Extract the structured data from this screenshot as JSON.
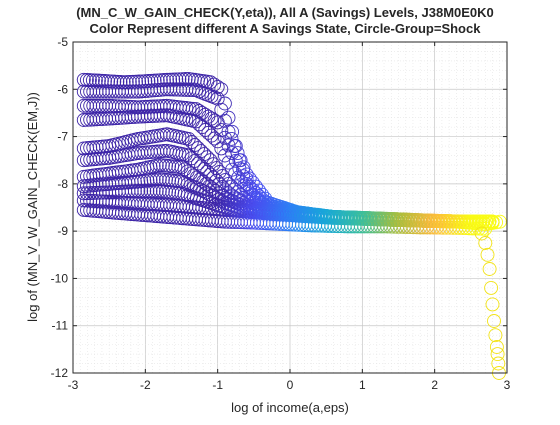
{
  "figure": {
    "title_line1": "(MN_C_W_GAIN_CHECK(Y,eta)), All A (Savings) Levels, J38M0E0K0",
    "title_line2": "Color Represent different A Savings State, Circle-Group=Shock"
  },
  "chart_data": {
    "type": "scatter",
    "title": "(MN_C_W_GAIN_CHECK(Y,eta)), All A (Savings) Levels, J38M0E0K0",
    "subtitle": "Color Represent different A Savings State, Circle-Group=Shock",
    "xlabel": "log of income(a,eps)",
    "ylabel": "log of (MN_V_W_GAIN_CHECK(EM,J))",
    "xlim": [
      -3,
      3
    ],
    "ylim": [
      -12,
      -5
    ],
    "x_ticks": [
      "-3",
      "-2",
      "-1",
      "0",
      "1",
      "2",
      "3"
    ],
    "y_ticks": [
      "-12",
      "-11",
      "-10",
      "-9",
      "-8",
      "-7",
      "-6",
      "-5"
    ],
    "grid": "major and minor dotted",
    "marker": "open circle",
    "colormap": [
      "#3e26a8",
      "#4a4cf0",
      "#2d7ff5",
      "#18a8d8",
      "#3bbf9d",
      "#a8be3e",
      "#fcba3c",
      "#f9fb15"
    ],
    "series": [
      {
        "x": [
          -2.85,
          -2.6,
          -2.3,
          -2.0,
          -1.7,
          -1.4,
          -1.1,
          -0.95,
          -0.85,
          -0.7,
          -0.5,
          -0.2,
          0.2,
          0.6,
          1.0,
          1.5,
          2.0,
          2.5,
          2.8
        ],
        "y": [
          -5.8,
          -5.82,
          -5.85,
          -5.83,
          -5.8,
          -5.78,
          -5.85,
          -6.0,
          -6.6,
          -7.5,
          -8.3,
          -8.62,
          -8.68,
          -8.7,
          -8.72,
          -8.75,
          -8.78,
          -8.8,
          -8.8
        ]
      },
      {
        "x": [
          -2.85,
          -2.5,
          -2.1,
          -1.7,
          -1.3,
          -1.0,
          -0.85,
          -0.6,
          -0.3,
          0.1,
          0.6,
          1.2,
          1.8,
          2.4,
          2.8
        ],
        "y": [
          -6.05,
          -6.05,
          -6.05,
          -6.0,
          -6.02,
          -6.2,
          -6.9,
          -7.8,
          -8.4,
          -8.6,
          -8.7,
          -8.73,
          -8.77,
          -8.8,
          -8.8
        ]
      },
      {
        "x": [
          -2.85,
          -2.5,
          -2.1,
          -1.7,
          -1.3,
          -1.0,
          -0.8,
          -0.6,
          -0.3,
          0.1,
          0.6,
          1.2,
          1.8,
          2.4,
          2.8
        ],
        "y": [
          -6.35,
          -6.35,
          -6.38,
          -6.35,
          -6.42,
          -6.7,
          -7.35,
          -8.0,
          -8.45,
          -8.6,
          -8.7,
          -8.73,
          -8.77,
          -8.8,
          -8.8
        ]
      },
      {
        "x": [
          -2.85,
          -2.5,
          -2.1,
          -1.7,
          -1.3,
          -1.0,
          -0.8,
          -0.55,
          -0.3,
          0.1,
          0.6,
          1.2,
          1.8,
          2.4,
          2.8
        ],
        "y": [
          -6.65,
          -6.62,
          -6.58,
          -6.55,
          -6.68,
          -7.1,
          -7.7,
          -8.2,
          -8.5,
          -8.62,
          -8.7,
          -8.74,
          -8.78,
          -8.8,
          -8.8
        ]
      },
      {
        "x": [
          -2.85,
          -2.5,
          -2.1,
          -1.7,
          -1.4,
          -1.1,
          -0.85,
          -0.6,
          -0.3,
          0.1,
          0.6,
          1.2,
          1.8,
          2.4,
          2.8
        ],
        "y": [
          -7.25,
          -7.2,
          -7.05,
          -6.95,
          -7.05,
          -7.5,
          -8.0,
          -8.35,
          -8.55,
          -8.63,
          -8.7,
          -8.74,
          -8.78,
          -8.8,
          -8.8
        ]
      },
      {
        "x": [
          -2.85,
          -2.5,
          -2.1,
          -1.7,
          -1.4,
          -1.1,
          -0.85,
          -0.6,
          -0.3,
          0.1,
          0.6,
          1.2,
          1.8,
          2.4,
          2.8
        ],
        "y": [
          -7.5,
          -7.45,
          -7.35,
          -7.3,
          -7.4,
          -7.8,
          -8.2,
          -8.45,
          -8.58,
          -8.64,
          -8.7,
          -8.74,
          -8.78,
          -8.8,
          -8.8
        ]
      },
      {
        "x": [
          -2.85,
          -2.5,
          -2.1,
          -1.8,
          -1.5,
          -1.2,
          -0.9,
          -0.6,
          -0.3,
          0.1,
          0.6,
          1.2,
          1.8,
          2.4,
          2.8
        ],
        "y": [
          -7.85,
          -7.78,
          -7.7,
          -7.6,
          -7.65,
          -7.95,
          -8.3,
          -8.5,
          -8.6,
          -8.65,
          -8.71,
          -8.75,
          -8.78,
          -8.8,
          -8.8
        ]
      },
      {
        "x": [
          -2.85,
          -2.5,
          -2.1,
          -1.8,
          -1.5,
          -1.2,
          -0.9,
          -0.6,
          -0.3,
          0.1,
          0.6,
          1.2,
          1.8,
          2.4,
          2.8
        ],
        "y": [
          -8.05,
          -8.0,
          -7.95,
          -7.9,
          -7.95,
          -8.15,
          -8.4,
          -8.55,
          -8.62,
          -8.66,
          -8.71,
          -8.75,
          -8.78,
          -8.8,
          -8.8
        ]
      },
      {
        "x": [
          -2.85,
          -2.5,
          -2.1,
          -1.8,
          -1.5,
          -1.2,
          -0.9,
          -0.6,
          -0.3,
          0.1,
          0.6,
          1.2,
          1.8,
          2.4,
          2.8
        ],
        "y": [
          -8.2,
          -8.18,
          -8.15,
          -8.15,
          -8.2,
          -8.35,
          -8.5,
          -8.58,
          -8.63,
          -8.67,
          -8.72,
          -8.75,
          -8.78,
          -8.8,
          -8.8
        ]
      },
      {
        "x": [
          -2.85,
          -2.5,
          -2.1,
          -1.7,
          -1.3,
          -0.9,
          -0.5,
          -0.1,
          0.3,
          0.8,
          1.3,
          1.8,
          2.3,
          2.7,
          2.9
        ],
        "y": [
          -8.35,
          -8.38,
          -8.42,
          -8.45,
          -8.5,
          -8.55,
          -8.6,
          -8.64,
          -8.68,
          -8.72,
          -8.75,
          -8.78,
          -8.8,
          -8.85,
          -8.8
        ]
      },
      {
        "x": [
          -2.85,
          -2.5,
          -2.1,
          -1.7,
          -1.3,
          -0.9,
          -0.5,
          -0.1,
          0.3,
          0.8,
          1.3,
          1.8,
          2.3,
          2.7
        ],
        "y": [
          -8.55,
          -8.6,
          -8.65,
          -8.7,
          -8.75,
          -8.8,
          -8.82,
          -8.85,
          -8.88,
          -8.9,
          -8.9,
          -8.92,
          -8.93,
          -8.95
        ]
      },
      {
        "x": [
          2.65,
          2.7,
          2.73,
          2.76,
          2.78,
          2.8,
          2.82,
          2.84,
          2.86,
          2.87,
          2.88,
          2.89
        ],
        "y": [
          -9.05,
          -9.25,
          -9.5,
          -9.8,
          -10.2,
          -10.55,
          -10.9,
          -11.2,
          -11.45,
          -11.6,
          -11.8,
          -12.0
        ]
      }
    ]
  }
}
